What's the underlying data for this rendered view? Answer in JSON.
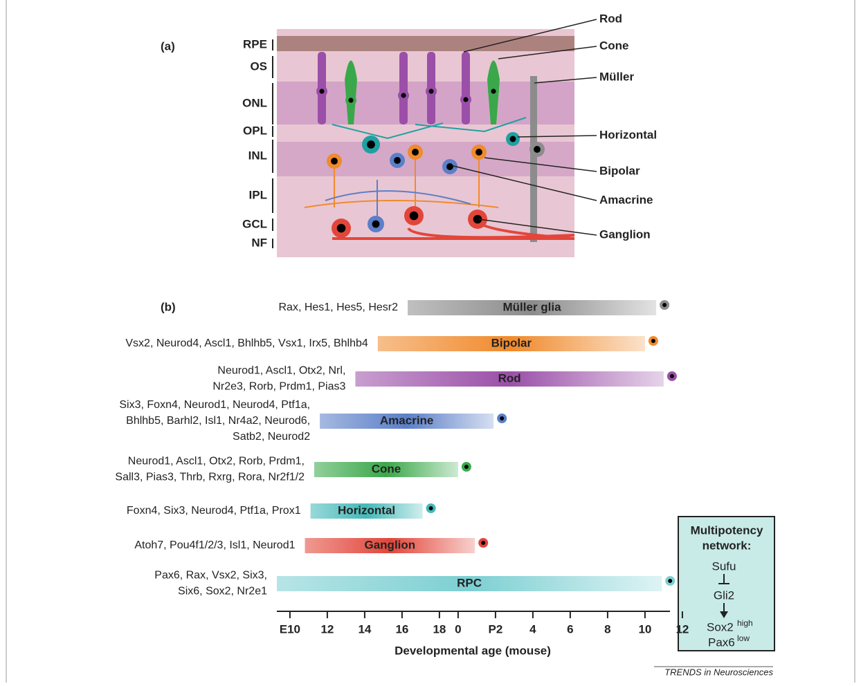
{
  "panel_a": {
    "label": "(a)",
    "layers": [
      "RPE",
      "OS",
      "ONL",
      "OPL",
      "INL",
      "IPL",
      "GCL",
      "NF"
    ],
    "cells": [
      "Rod",
      "Cone",
      "Müller",
      "Horizontal",
      "Bipolar",
      "Amacrine",
      "Ganglion"
    ]
  },
  "panel_b": {
    "label": "(b)",
    "xlabel": "Developmental age (mouse)",
    "xlim": [
      9.3,
      30.3
    ],
    "xticks": [
      {
        "value": 10,
        "label": "E10"
      },
      12,
      14,
      16,
      18,
      {
        "value": 19,
        "label": "0"
      },
      {
        "value": 21,
        "label": "P2"
      },
      {
        "value": 23,
        "label": "4"
      },
      {
        "value": 25,
        "label": "6"
      },
      {
        "value": 27,
        "label": "8"
      },
      {
        "value": 29,
        "label": "10"
      },
      {
        "value": 31,
        "label": "12"
      }
    ],
    "rows": [
      {
        "name": "Müller glia",
        "genes": [
          "Rax, Hes1, Hes5, Hesr2"
        ],
        "color": "#8c8c8c",
        "start": 16.3,
        "end": 29.6
      },
      {
        "name": "Bipolar",
        "genes": [
          "Vsx2, Neurod4, Ascl1, Bhlhb5, Vsx1, Irx5, Bhlhb4"
        ],
        "color": "#f08a2c",
        "start": 14.7,
        "end": 29.0
      },
      {
        "name": "Rod",
        "genes": [
          "Neurod1, Ascl1, Otx2, Nrl,",
          "Nr2e3, Rorb, Prdm1, Pias3"
        ],
        "color": "#9b4fa8",
        "start": 13.5,
        "end": 30.0
      },
      {
        "name": "Amacrine",
        "genes": [
          "Six3, Foxn4, Neurod1, Neurod4, Ptf1a,",
          "Bhlhb5, Barhl2, Isl1, Nr4a2, Neurod6,",
          "Satb2, Neurod2"
        ],
        "color": "#5b7fc8",
        "start": 11.6,
        "end": 20.9
      },
      {
        "name": "Cone",
        "genes": [
          "Neurod1, Ascl1, Otx2,  Rorb, Prdm1,",
          "Sall3, Pias3, Thrb, Rxrg, Rora, Nr2f1/2"
        ],
        "color": "#3aa84a",
        "start": 11.3,
        "end": 19.0
      },
      {
        "name": "Horizontal",
        "genes": [
          "Foxn4, Six3, Neurod4, Ptf1a, Prox1"
        ],
        "color": "#45b9b9",
        "start": 11.1,
        "end": 17.1
      },
      {
        "name": "Ganglion",
        "genes": [
          "Atoh7, Pou4f1/2/3, Isl1, Neurod1"
        ],
        "color": "#e2463a",
        "start": 10.8,
        "end": 19.9
      },
      {
        "name": "RPC",
        "genes": [
          "Pax6, Rax, Vsx2, Six3,",
          "Six6, Sox2, Nr2e1"
        ],
        "color": "#7ccfd2",
        "start": 9.3,
        "end": 29.9
      }
    ]
  },
  "network": {
    "title": [
      "Multipotency",
      "network:"
    ],
    "items": [
      "Sufu",
      "Gli2"
    ],
    "sox2": "Sox2",
    "sox2_sup": "high",
    "pax6": "Pax6",
    "pax6_sup": "low"
  },
  "footer": "TRENDS in Neurosciences"
}
